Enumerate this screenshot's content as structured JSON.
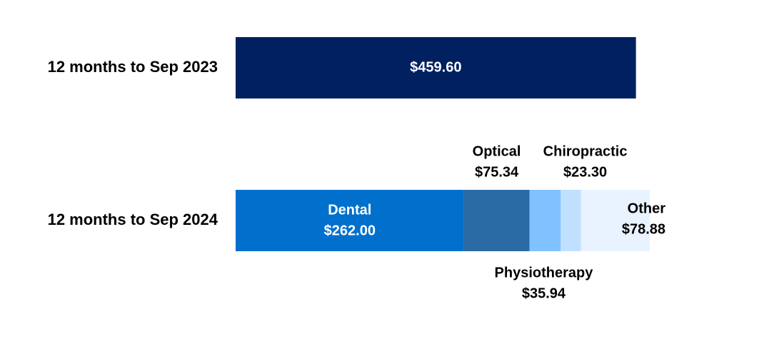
{
  "chart_data": {
    "type": "stacked_bar_horizontal",
    "categories": [
      "12 months to Sep 2023",
      "12 months to Sep 2024"
    ],
    "series": [
      {
        "color": "#002060",
        "values": [
          459.6,
          null
        ],
        "value_labels": [
          "$459.60",
          null
        ]
      },
      {
        "name": "Dental",
        "color": "#0070cc",
        "values": [
          null,
          262.0
        ],
        "value_labels": [
          null,
          "$262.00"
        ]
      },
      {
        "name": "Optical",
        "color": "#2a6ba6",
        "values": [
          null,
          75.34
        ],
        "value_labels": [
          null,
          "$75.34"
        ]
      },
      {
        "name": "Physiotherapy",
        "color": "#80c2ff",
        "values": [
          null,
          35.94
        ],
        "value_labels": [
          null,
          "$35.94"
        ]
      },
      {
        "name": "Chiropractic",
        "color": "#c0e0ff",
        "values": [
          null,
          23.3
        ],
        "value_labels": [
          null,
          "$23.30"
        ]
      },
      {
        "name": "Other",
        "color": "#e8f3ff",
        "values": [
          null,
          78.88
        ],
        "value_labels": [
          null,
          "$78.88"
        ]
      }
    ]
  }
}
